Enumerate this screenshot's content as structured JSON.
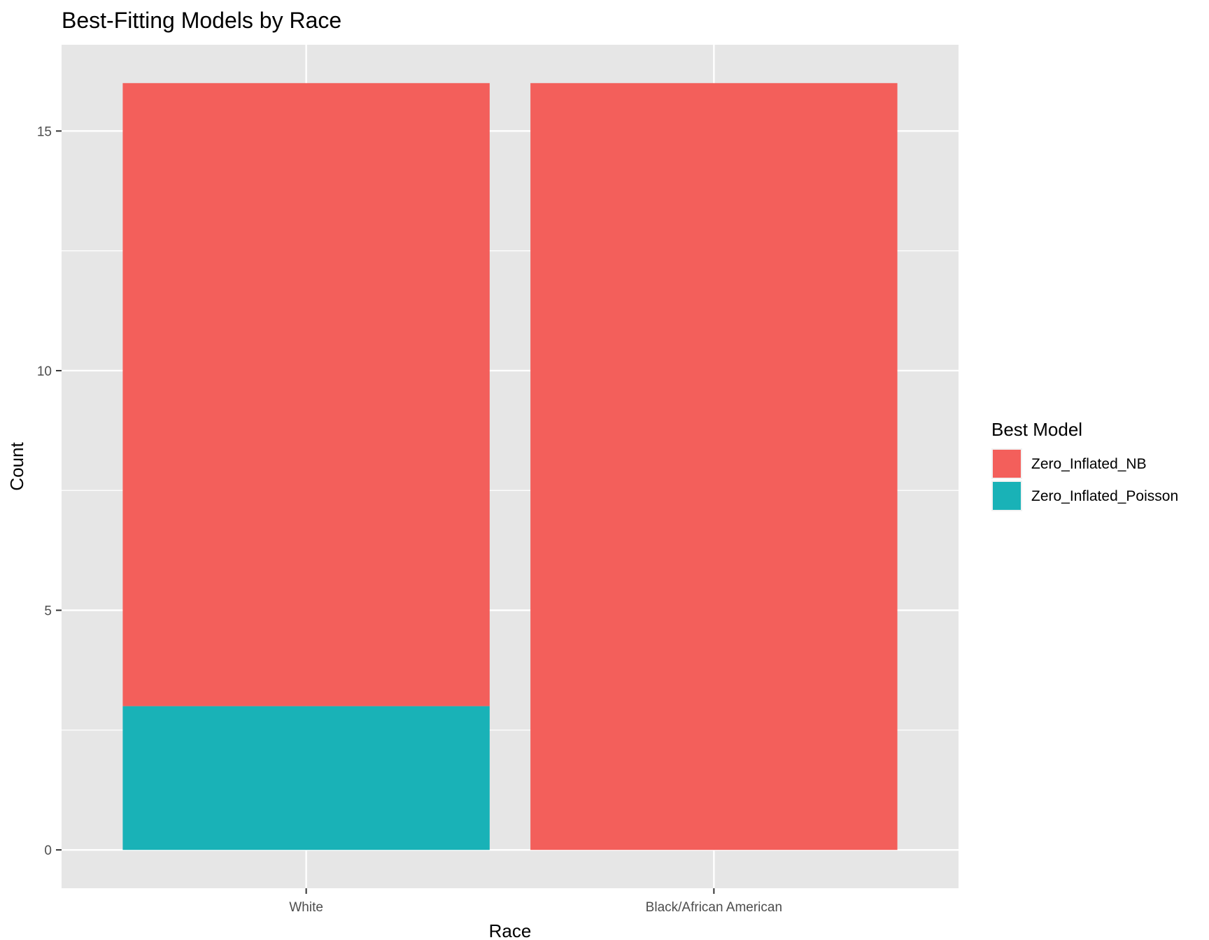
{
  "chart_data": {
    "type": "bar",
    "stacked": true,
    "title": "Best-Fitting Models by Race",
    "xlabel": "Race",
    "ylabel": "Count",
    "categories": [
      "White",
      "Black/African American"
    ],
    "series": [
      {
        "name": "Zero_Inflated_NB",
        "values": [
          13,
          16
        ],
        "color": "#f35f5b"
      },
      {
        "name": "Zero_Inflated_Poisson",
        "values": [
          3,
          0
        ],
        "color": "#19b2b7"
      }
    ],
    "ylim": [
      -0.8,
      16.8
    ],
    "yticks": [
      0,
      5,
      10,
      15
    ],
    "yticks_minor": [
      2.5,
      7.5,
      12.5
    ],
    "grid": true,
    "legend": {
      "title": "Best Model",
      "placement": "right"
    },
    "panel_background": "#e6e6e6",
    "grid_color": "#ffffff"
  }
}
